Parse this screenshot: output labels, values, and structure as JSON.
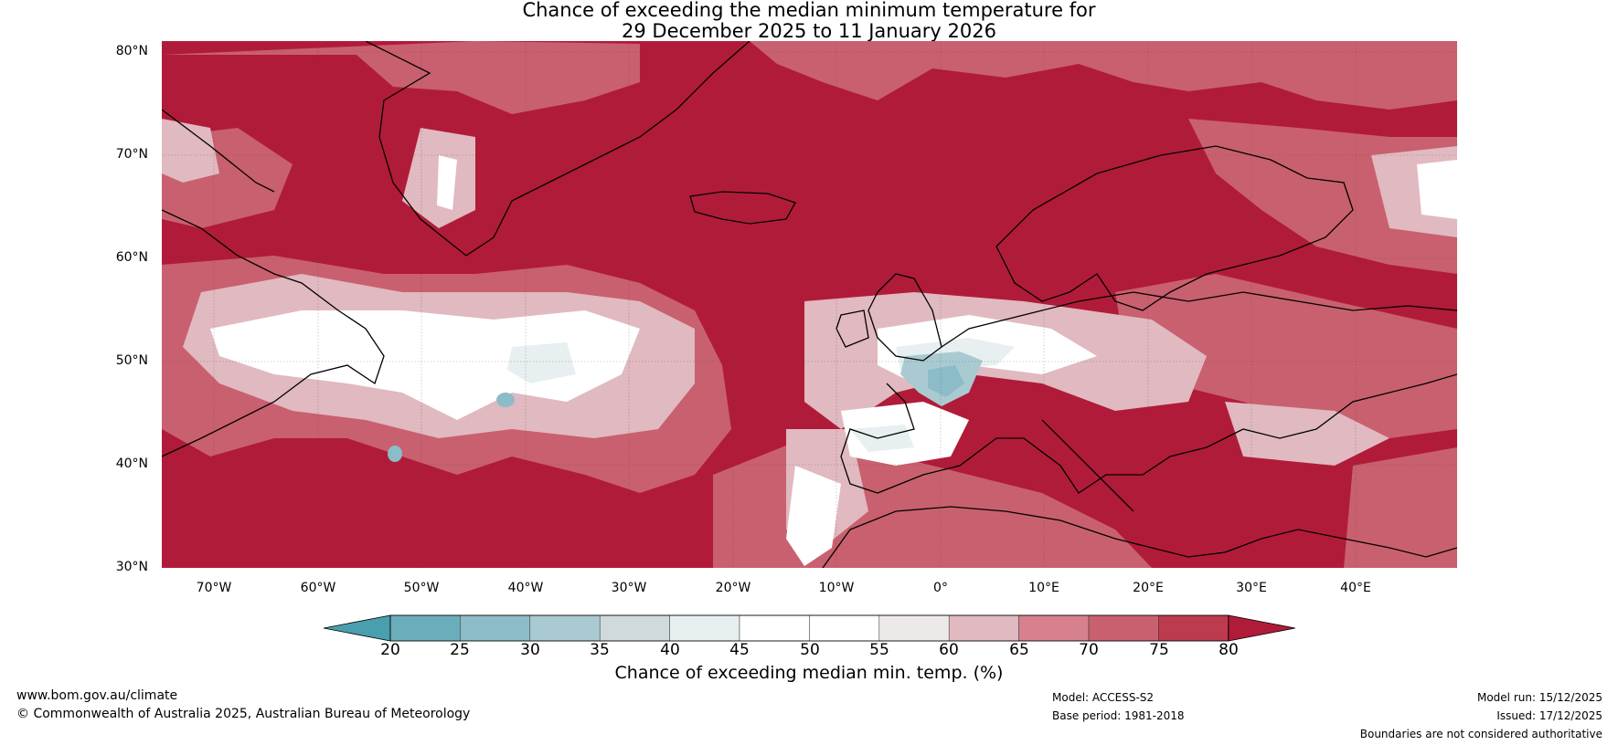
{
  "title": {
    "line1": "Chance of exceeding the median minimum temperature for",
    "line2": "29 December 2025 to 11 January 2026"
  },
  "map": {
    "lat_labels": [
      "80°N",
      "70°N",
      "60°N",
      "50°N",
      "40°N",
      "30°N"
    ],
    "lon_labels": [
      "70°W",
      "60°W",
      "50°W",
      "40°W",
      "30°W",
      "20°W",
      "10°W",
      "0°",
      "10°E",
      "20°E",
      "30°E",
      "40°E"
    ]
  },
  "colorbar": {
    "ticks": [
      "20",
      "25",
      "30",
      "35",
      "40",
      "45",
      "50",
      "55",
      "60",
      "65",
      "70",
      "75",
      "80"
    ],
    "colors": [
      "#4a9fae",
      "#6aaebb",
      "#8cbcc8",
      "#aacad2",
      "#d0dadc",
      "#e8eff1",
      "#ffffff",
      "#ffffff",
      "#ece9e8",
      "#e1b9c0",
      "#d7818e",
      "#c9606f",
      "#bd3b4e",
      "#b11b3a"
    ],
    "label": "Chance of exceeding median min. temp. (%)"
  },
  "footer": {
    "url": "www.bom.gov.au/climate",
    "copyright": "© Commonwealth of Australia 2025, Australian Bureau of Meteorology",
    "model": "Model: ACCESS-S2",
    "base_period": "Base period: 1981-2018",
    "model_run": "Model run: 15/12/2025",
    "issued": "Issued: 17/12/2025",
    "disclaimer": "Boundaries are not considered authoritative"
  }
}
